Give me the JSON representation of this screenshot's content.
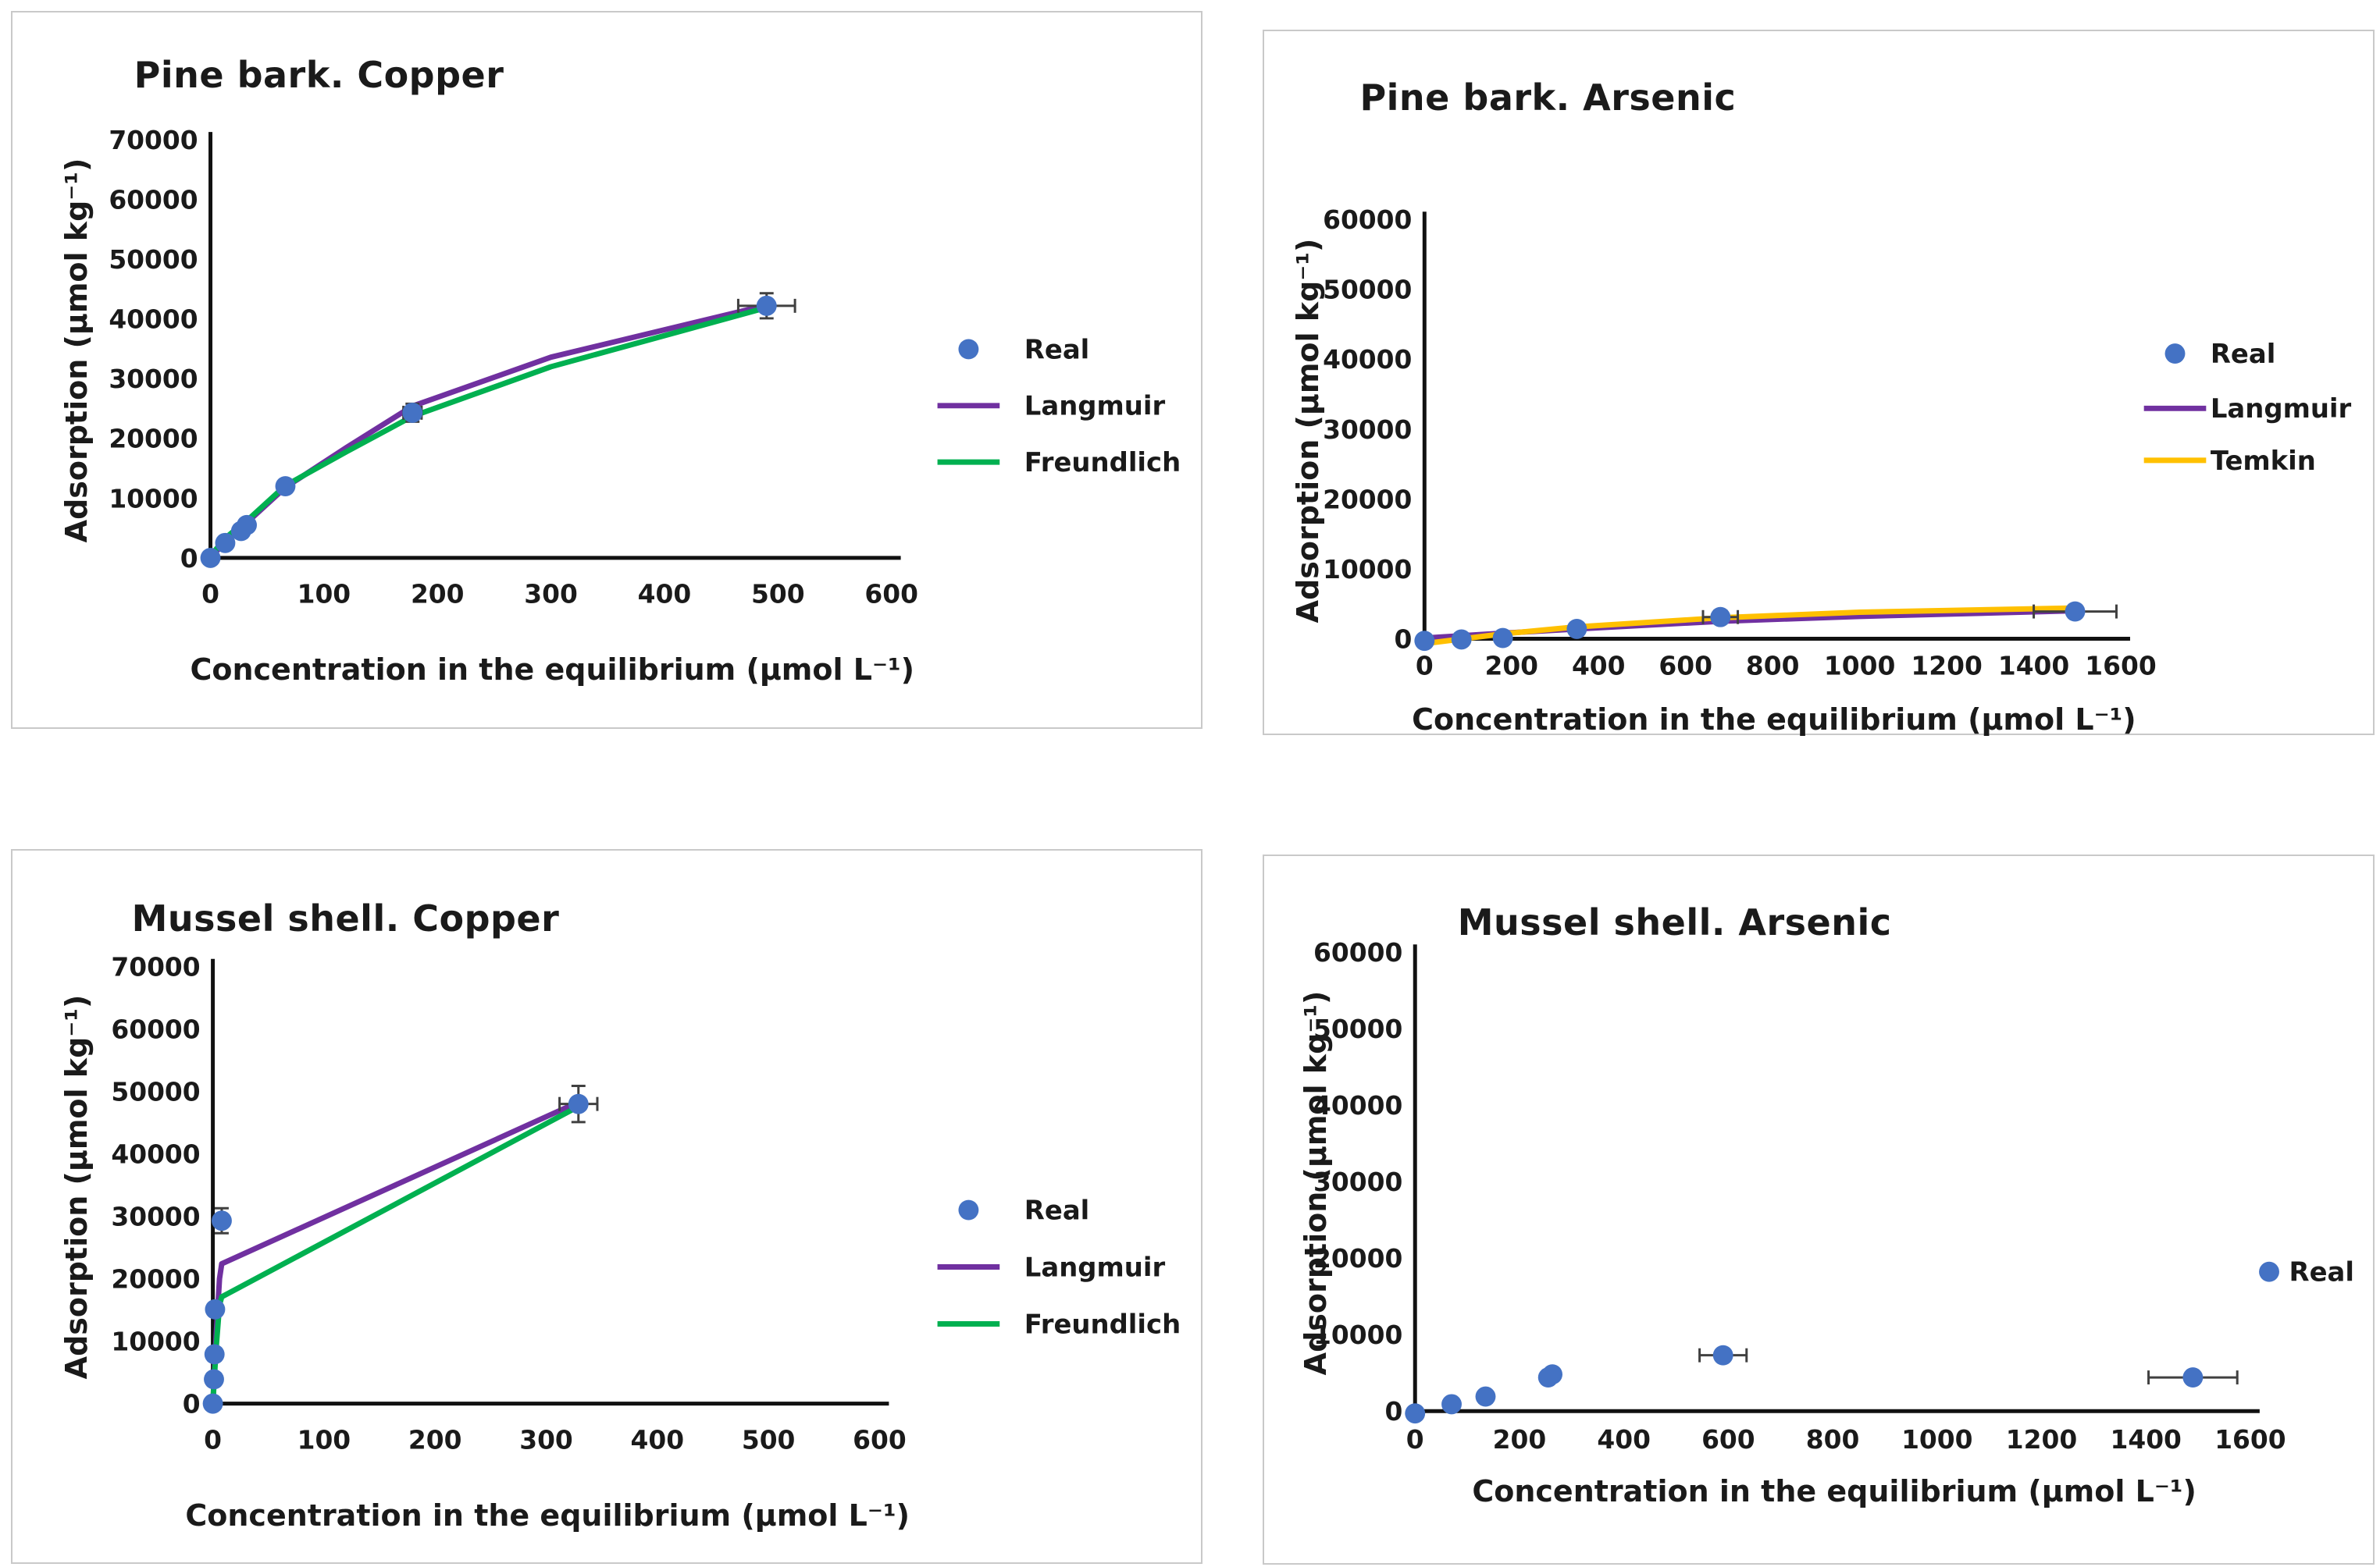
{
  "chart_data": [
    {
      "type": "scatter",
      "title": "Pine bark. Copper",
      "xlabel": "Concentration in the equilibrium (μmol L⁻¹)",
      "ylabel": "Adsorption (μmol kg⁻¹)",
      "xlim": [
        0,
        600
      ],
      "xstep": 100,
      "ylim": [
        0,
        70000
      ],
      "ystep": 10000,
      "grid": false,
      "legend_position": "right",
      "series": [
        {
          "name": "Real",
          "type": "scatter",
          "color": "#4472C4",
          "points": [
            {
              "x": 0,
              "y": 0
            },
            {
              "x": 13,
              "y": 2500
            },
            {
              "x": 27,
              "y": 4500
            },
            {
              "x": 32,
              "y": 5500
            },
            {
              "x": 66,
              "y": 12000
            },
            {
              "x": 178,
              "y": 24300,
              "xerr": 8,
              "yerr": 1500
            },
            {
              "x": 490,
              "y": 42200,
              "xerr": 25,
              "yerr": 2100
            }
          ]
        },
        {
          "name": "Langmuir",
          "type": "line",
          "color": "#7030A0",
          "points": [
            {
              "x": 0,
              "y": 0
            },
            {
              "x": 13,
              "y": 2700
            },
            {
              "x": 27,
              "y": 5100
            },
            {
              "x": 32,
              "y": 5900
            },
            {
              "x": 66,
              "y": 11800
            },
            {
              "x": 120,
              "y": 18500
            },
            {
              "x": 178,
              "y": 25400
            },
            {
              "x": 300,
              "y": 33600
            },
            {
              "x": 490,
              "y": 42300
            }
          ]
        },
        {
          "name": "Freundlich",
          "type": "line",
          "color": "#00B050",
          "points": [
            {
              "x": 0,
              "y": 300
            },
            {
              "x": 13,
              "y": 3300
            },
            {
              "x": 27,
              "y": 5500
            },
            {
              "x": 32,
              "y": 6200
            },
            {
              "x": 66,
              "y": 12100
            },
            {
              "x": 120,
              "y": 17800
            },
            {
              "x": 178,
              "y": 23700
            },
            {
              "x": 300,
              "y": 32000
            },
            {
              "x": 490,
              "y": 41900
            }
          ]
        }
      ]
    },
    {
      "type": "scatter",
      "title": "Pine bark. Arsenic",
      "xlabel": "Concentration in the equilibrium (μmol L⁻¹)",
      "ylabel": "Adsorption (μmol kg⁻¹)",
      "xlim": [
        0,
        1600
      ],
      "xstep": 200,
      "ylim": [
        0,
        60000
      ],
      "ystep": 10000,
      "grid": false,
      "legend_position": "right",
      "series": [
        {
          "name": "Real",
          "type": "scatter",
          "color": "#4472C4",
          "points": [
            {
              "x": 0,
              "y": -300
            },
            {
              "x": 85,
              "y": -100
            },
            {
              "x": 180,
              "y": 100
            },
            {
              "x": 350,
              "y": 1400,
              "yerr": 700
            },
            {
              "x": 680,
              "y": 3100,
              "xerr": 40,
              "yerr": 900
            },
            {
              "x": 1495,
              "y": 3900,
              "xerr": 95
            }
          ]
        },
        {
          "name": "Langmuir",
          "type": "line",
          "color": "#7030A0",
          "points": [
            {
              "x": 0,
              "y": 100
            },
            {
              "x": 180,
              "y": 800
            },
            {
              "x": 350,
              "y": 1400
            },
            {
              "x": 680,
              "y": 2500
            },
            {
              "x": 1000,
              "y": 3200
            },
            {
              "x": 1495,
              "y": 4000
            }
          ]
        },
        {
          "name": "Temkin",
          "type": "line",
          "color": "#FFC000",
          "points": [
            {
              "x": 0,
              "y": -700
            },
            {
              "x": 180,
              "y": 700
            },
            {
              "x": 350,
              "y": 1700
            },
            {
              "x": 680,
              "y": 3000
            },
            {
              "x": 1000,
              "y": 3800
            },
            {
              "x": 1495,
              "y": 4400
            }
          ]
        }
      ]
    },
    {
      "type": "scatter",
      "title": "Mussel shell. Copper",
      "xlabel": "Concentration in the equilibrium (μmol L⁻¹)",
      "ylabel": "Adsorption (μmol kg⁻¹)",
      "xlim": [
        0,
        600
      ],
      "xstep": 100,
      "ylim": [
        0,
        70000
      ],
      "ystep": 10000,
      "grid": false,
      "legend_position": "right",
      "series": [
        {
          "name": "Real",
          "type": "scatter",
          "color": "#4472C4",
          "points": [
            {
              "x": 0,
              "y": 0
            },
            {
              "x": 1,
              "y": 3900
            },
            {
              "x": 1.5,
              "y": 7900
            },
            {
              "x": 2,
              "y": 15100
            },
            {
              "x": 8,
              "y": 29300,
              "yerr": 2000
            },
            {
              "x": 329,
              "y": 48000,
              "xerr": 17,
              "yerr": 2900
            }
          ]
        },
        {
          "name": "Langmuir",
          "type": "line",
          "color": "#7030A0",
          "points": [
            {
              "x": 0,
              "y": 0
            },
            {
              "x": 1,
              "y": 3500
            },
            {
              "x": 3,
              "y": 11000
            },
            {
              "x": 6,
              "y": 20000
            },
            {
              "x": 8,
              "y": 22400
            },
            {
              "x": 329,
              "y": 48300
            }
          ]
        },
        {
          "name": "Freundlich",
          "type": "line",
          "color": "#00B050",
          "points": [
            {
              "x": 0,
              "y": 0
            },
            {
              "x": 1,
              "y": 3000
            },
            {
              "x": 3,
              "y": 9000
            },
            {
              "x": 6,
              "y": 15800
            },
            {
              "x": 8,
              "y": 17100
            },
            {
              "x": 329,
              "y": 47600
            }
          ]
        }
      ]
    },
    {
      "type": "scatter",
      "title": "Mussel shell. Arsenic",
      "xlabel": "Concentration in the equilibrium (μmol L⁻¹)",
      "ylabel": "Adsorption (μmol kg⁻¹)",
      "xlim": [
        0,
        1600
      ],
      "xstep": 200,
      "ylim": [
        0,
        60000
      ],
      "ystep": 10000,
      "grid": false,
      "legend_position": "right",
      "series": [
        {
          "name": "Real",
          "type": "scatter",
          "color": "#4472C4",
          "points": [
            {
              "x": 0,
              "y": -300
            },
            {
              "x": 70,
              "y": 900
            },
            {
              "x": 135,
              "y": 1900
            },
            {
              "x": 255,
              "y": 4400
            },
            {
              "x": 263,
              "y": 4800
            },
            {
              "x": 590,
              "y": 7300,
              "xerr": 45
            },
            {
              "x": 1490,
              "y": 4400,
              "xerr": 85
            }
          ]
        }
      ]
    }
  ],
  "colors": {
    "real": "#4472C4",
    "langmuir": "#7030A0",
    "freundlich": "#00B050",
    "temkin": "#FFC000",
    "axis": "#111111",
    "text": "#1a1a1a",
    "error_bar": "#404040",
    "panel_border": "#c9c9c9"
  }
}
